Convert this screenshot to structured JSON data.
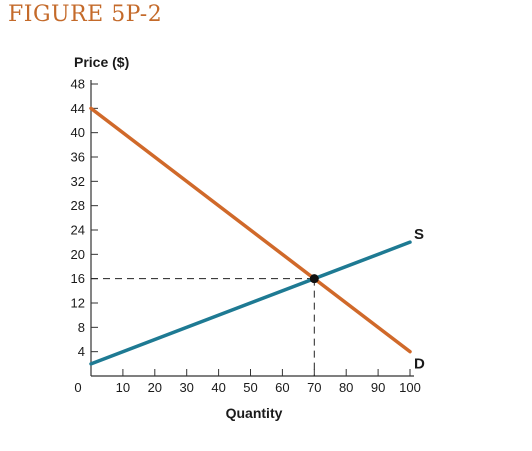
{
  "figure_label": "FIGURE 5P-2",
  "chart_data": {
    "type": "line",
    "ylabel": "Price ($)",
    "xlabel": "Quantity",
    "x_ticks": [
      0,
      10,
      20,
      30,
      40,
      50,
      60,
      70,
      80,
      90,
      100
    ],
    "y_ticks": [
      4,
      8,
      12,
      16,
      20,
      24,
      28,
      32,
      36,
      40,
      44,
      48
    ],
    "xlim": [
      0,
      100
    ],
    "ylim": [
      0,
      48
    ],
    "grid": false,
    "series": [
      {
        "name": "D",
        "color": "#d0692a",
        "points": [
          [
            0,
            44
          ],
          [
            100,
            4
          ]
        ]
      },
      {
        "name": "S",
        "color": "#1e7a93",
        "points": [
          [
            0,
            2
          ],
          [
            100,
            22
          ]
        ]
      }
    ],
    "equilibrium": {
      "x": 70,
      "y": 16
    }
  }
}
